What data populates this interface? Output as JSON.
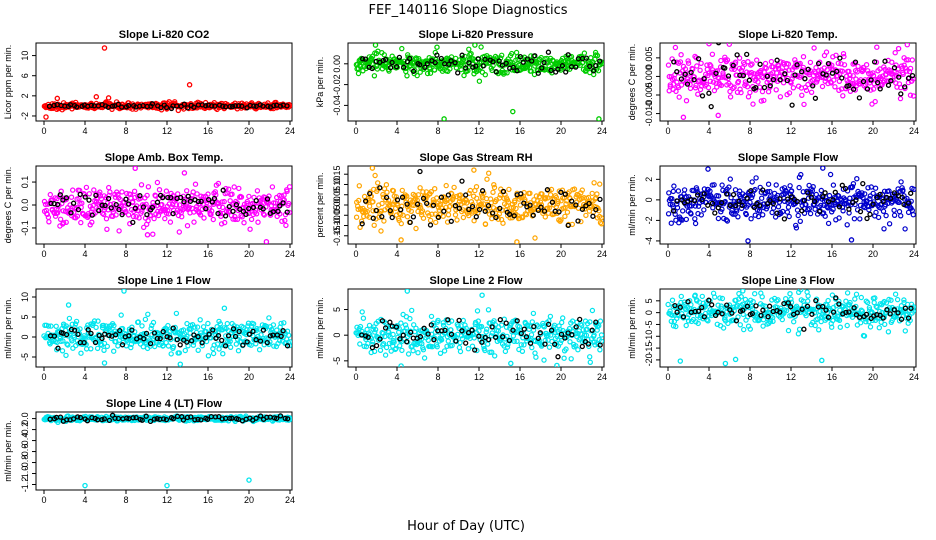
{
  "figure": {
    "title": "FEF_140116  Slope Diagnostics",
    "xlabel": "Hour of Day (UTC)"
  },
  "colors": {
    "reference_points": "#000000"
  },
  "chart_data": [
    {
      "type": "scatter",
      "title": "Slope Li-820 CO2",
      "ylabel": "Licor ppm per min.",
      "color": "#ff0000",
      "xlim": [
        0,
        24
      ],
      "ylim": [
        -3,
        12.5
      ],
      "xticks": [
        "0",
        "4",
        "8",
        "12",
        "16",
        "20",
        "24"
      ],
      "yticks": [
        "-2",
        "2",
        "6",
        "10"
      ],
      "center": 0,
      "spread": 0.3,
      "black_spread": 0.2,
      "outliers": [
        [
          5.9,
          11.5
        ],
        [
          14.2,
          4.2
        ],
        [
          1.3,
          1.5
        ],
        [
          5.1,
          1.8
        ],
        [
          6.3,
          1.6
        ],
        [
          13.1,
          -0.9
        ],
        [
          0.2,
          -2.2
        ]
      ]
    },
    {
      "type": "scatter",
      "title": "Slope Li-820 Pressure",
      "ylabel": "kPa per min.",
      "color": "#00cc00",
      "xlim": [
        0,
        24
      ],
      "ylim": [
        -0.055,
        0.02
      ],
      "xticks": [
        "0",
        "4",
        "8",
        "12",
        "16",
        "20",
        "24"
      ],
      "yticks": [
        "-0.04",
        "-0.02",
        "0.00"
      ],
      "center": 0.0,
      "spread": 0.005,
      "black_spread": 0.005,
      "outliers": [
        [
          1.9,
          0.018
        ],
        [
          7.9,
          0.016
        ],
        [
          8.6,
          -0.053
        ],
        [
          11.6,
          0.018
        ],
        [
          15.3,
          -0.046
        ],
        [
          23.7,
          -0.053
        ]
      ]
    },
    {
      "type": "scatter",
      "title": "Slope Li-820 Temp.",
      "ylabel": "degrees C per min.",
      "color": "#ff00ff",
      "xlim": [
        0,
        24
      ],
      "ylim": [
        -0.012,
        0.009
      ],
      "xticks": [
        "0",
        "4",
        "8",
        "12",
        "16",
        "20",
        "24"
      ],
      "yticks": [
        "-0.010",
        "-0.005",
        "0.000",
        "0.005"
      ],
      "center": 0.0,
      "spread": 0.003,
      "black_spread": 0.003,
      "outliers": [
        [
          4.0,
          0.0088
        ],
        [
          1.5,
          -0.011
        ],
        [
          4.9,
          -0.0105
        ],
        [
          22.5,
          0.0075
        ]
      ]
    },
    {
      "type": "scatter",
      "title": "Slope Amb. Box Temp.",
      "ylabel": "degrees C per min.",
      "color": "#ff00ff",
      "xlim": [
        0,
        24
      ],
      "ylim": [
        -0.17,
        0.17
      ],
      "xticks": [
        "0",
        "4",
        "8",
        "12",
        "16",
        "20",
        "24"
      ],
      "yticks": [
        "-0.1",
        "0.0",
        "0.1"
      ],
      "center": 0.0,
      "spread": 0.04,
      "black_spread": 0.03,
      "outliers": [
        [
          8.9,
          0.16
        ],
        [
          13.7,
          0.14
        ],
        [
          21.7,
          -0.16
        ],
        [
          10.1,
          -0.13
        ]
      ]
    },
    {
      "type": "scatter",
      "title": "Slope Gas Stream RH",
      "ylabel": "percent per min.",
      "color": "#ffa500",
      "xlim": [
        0,
        24
      ],
      "ylim": [
        -0.19,
        0.19
      ],
      "xticks": [
        "0",
        "4",
        "8",
        "12",
        "16",
        "20",
        "24"
      ],
      "yticks": [
        "-0.15",
        "-0.10",
        "-0.05",
        "0.00",
        "0.05",
        "0.10",
        "0.15"
      ],
      "center": 0.0,
      "spread": 0.05,
      "black_spread": 0.05,
      "outliers": [
        [
          1.6,
          0.18
        ],
        [
          4.4,
          -0.17
        ],
        [
          15.7,
          -0.18
        ],
        [
          11.5,
          0.17
        ]
      ]
    },
    {
      "type": "scatter",
      "title": "Slope Sample Flow",
      "ylabel": "ml/min per min.",
      "color": "#0000cc",
      "xlim": [
        0,
        24
      ],
      "ylim": [
        -4.3,
        3.3
      ],
      "xticks": [
        "0",
        "4",
        "8",
        "12",
        "16",
        "20",
        "24"
      ],
      "yticks": [
        "-4",
        "-2",
        "0",
        "2"
      ],
      "center": -0.2,
      "spread": 0.9,
      "black_spread": 0.7,
      "outliers": [
        [
          3.9,
          3.0
        ],
        [
          7.8,
          -4.0
        ],
        [
          17.9,
          -3.9
        ],
        [
          15.1,
          3.1
        ]
      ]
    },
    {
      "type": "scatter",
      "title": "Slope Line 1 Flow",
      "ylabel": "ml/min per min.",
      "color": "#00e5ee",
      "xlim": [
        0,
        24
      ],
      "ylim": [
        -7.5,
        12
      ],
      "xticks": [
        "0",
        "4",
        "8",
        "12",
        "16",
        "20",
        "24"
      ],
      "yticks": [
        "-5",
        "0",
        "5",
        "10"
      ],
      "center": 0.2,
      "spread": 2.0,
      "black_spread": 1.5,
      "outliers": [
        [
          7.8,
          11.5
        ],
        [
          2.4,
          8.0
        ],
        [
          5.9,
          -6.5
        ],
        [
          13.3,
          -6.8
        ],
        [
          17.6,
          7.2
        ]
      ]
    },
    {
      "type": "scatter",
      "title": "Slope Line 2 Flow",
      "ylabel": "ml/min per min.",
      "color": "#00e5ee",
      "xlim": [
        0,
        24
      ],
      "ylim": [
        -6.2,
        9
      ],
      "xticks": [
        "0",
        "4",
        "8",
        "12",
        "16",
        "20",
        "24"
      ],
      "yticks": [
        "-5",
        "0",
        "5"
      ],
      "center": 0.0,
      "spread": 1.8,
      "black_spread": 1.8,
      "outliers": [
        [
          5.0,
          8.6
        ],
        [
          4.4,
          -6.0
        ],
        [
          15.1,
          -5.5
        ],
        [
          19.6,
          -5.9
        ],
        [
          12.3,
          7.8
        ]
      ]
    },
    {
      "type": "scatter",
      "title": "Slope Line 3 Flow",
      "ylabel": "ml/min per min.",
      "color": "#00e5ee",
      "xlim": [
        0,
        24
      ],
      "ylim": [
        -23,
        10
      ],
      "xticks": [
        "0",
        "4",
        "8",
        "12",
        "16",
        "20",
        "24"
      ],
      "yticks": [
        "-20",
        "-15",
        "-10",
        "-5",
        "0",
        "5"
      ],
      "center": 0.5,
      "spread": 3.5,
      "black_spread": 2.5,
      "outliers": [
        [
          5.6,
          -21.5
        ],
        [
          6.6,
          -19.8
        ],
        [
          7.3,
          9.2
        ],
        [
          1.2,
          -20.5
        ],
        [
          15.0,
          -20.2
        ],
        [
          11.9,
          8.0
        ]
      ]
    },
    {
      "type": "scatter",
      "title": "Slope Line 4 (LT) Flow",
      "ylabel": "ml/min per min.",
      "color": "#00e5ee",
      "xlim": [
        0,
        24
      ],
      "ylim": [
        -1.3,
        0.12
      ],
      "xticks": [
        "0",
        "4",
        "8",
        "12",
        "16",
        "20",
        "24"
      ],
      "yticks": [
        "-1.2",
        "-1.0",
        "-0.8",
        "-0.6",
        "-0.4",
        "-0.2",
        "0.0"
      ],
      "center": 0.0,
      "spread": 0.02,
      "black_spread": 0.025,
      "outliers": [
        [
          4.0,
          -1.22
        ],
        [
          12.0,
          -1.22
        ],
        [
          20.0,
          -1.12
        ]
      ]
    }
  ]
}
